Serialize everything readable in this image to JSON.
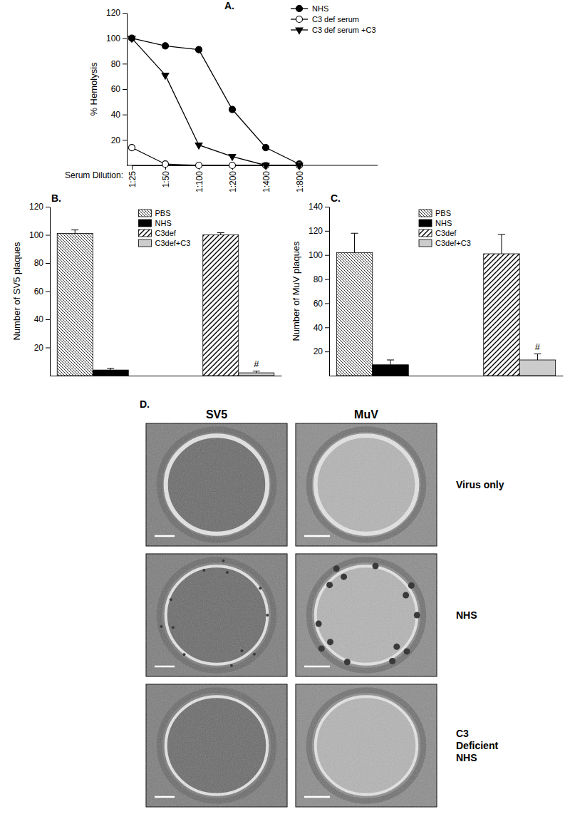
{
  "chart_data": [
    {
      "type": "line",
      "title": "A.",
      "x_label": "Serum Dilution:",
      "y_label": "% Hemolysis",
      "categories": [
        "1:25",
        "1:50",
        "1:100",
        "1:200",
        "1:400",
        "1:800"
      ],
      "series": [
        {
          "name": "NHS",
          "color": "#000000",
          "marker": "circle",
          "values": [
            100,
            94,
            91,
            44,
            14,
            1
          ]
        },
        {
          "name": "C3 def serum",
          "color": "#000000",
          "marker": "circle_open",
          "values": [
            14,
            1,
            0,
            0,
            0,
            0
          ]
        },
        {
          "name": "C3 def serum +C3",
          "color": "#000000",
          "marker": "triangle_down",
          "values": [
            100,
            71,
            16,
            7,
            0,
            0
          ]
        }
      ],
      "ylim": [
        0,
        120
      ],
      "yticks": [
        20,
        40,
        60,
        80,
        100,
        120
      ],
      "legend": "upper right"
    },
    {
      "type": "bar",
      "title": "B.",
      "y_label": "Number of SV5 plaques",
      "categories": [
        null,
        null
      ],
      "series": [
        {
          "name": "PBS",
          "color": "#ffffff",
          "values": [
            101,
            null
          ],
          "errors": [
            2.5,
            null
          ]
        },
        {
          "name": "NHS",
          "color": "#000000",
          "values": [
            4,
            null
          ],
          "errors": [
            1.2,
            null
          ]
        },
        {
          "name": "C3def",
          "color": "#ffffff",
          "values": [
            null,
            100
          ],
          "errors": [
            null,
            1.5
          ]
        },
        {
          "name": "C3def+C3",
          "color": "#cccccc",
          "values": [
            null,
            2
          ],
          "errors": [
            null,
            1.2
          ],
          "annotations": [
            null,
            "#"
          ]
        }
      ],
      "ylim": [
        0,
        120
      ],
      "yticks": [
        20,
        40,
        60,
        80,
        100,
        120
      ],
      "legend": "upper center"
    },
    {
      "type": "bar",
      "title": "C.",
      "y_label": "Number of MuV plaques",
      "categories": [
        null,
        null
      ],
      "series": [
        {
          "name": "PBS",
          "color": "#ffffff",
          "values": [
            102,
            null
          ],
          "errors": [
            16,
            null
          ]
        },
        {
          "name": "NHS",
          "color": "#000000",
          "values": [
            9,
            null
          ],
          "errors": [
            4,
            null
          ]
        },
        {
          "name": "C3def",
          "color": "#ffffff",
          "values": [
            null,
            101
          ],
          "errors": [
            null,
            16
          ]
        },
        {
          "name": "C3def+C3",
          "color": "#cccccc",
          "values": [
            null,
            13
          ],
          "errors": [
            null,
            5
          ],
          "annotations": [
            null,
            "#"
          ]
        }
      ],
      "ylim": [
        0,
        140
      ],
      "yticks": [
        20,
        40,
        60,
        80,
        100,
        120,
        140
      ],
      "legend": "upper center"
    }
  ],
  "micrographs": {
    "title": "D.",
    "columns": [
      "SV5",
      "MuV"
    ],
    "rows": [
      [
        "Virus only"
      ],
      [
        "NHS"
      ],
      [
        "C3",
        "Deficient",
        "NHS"
      ]
    ]
  }
}
